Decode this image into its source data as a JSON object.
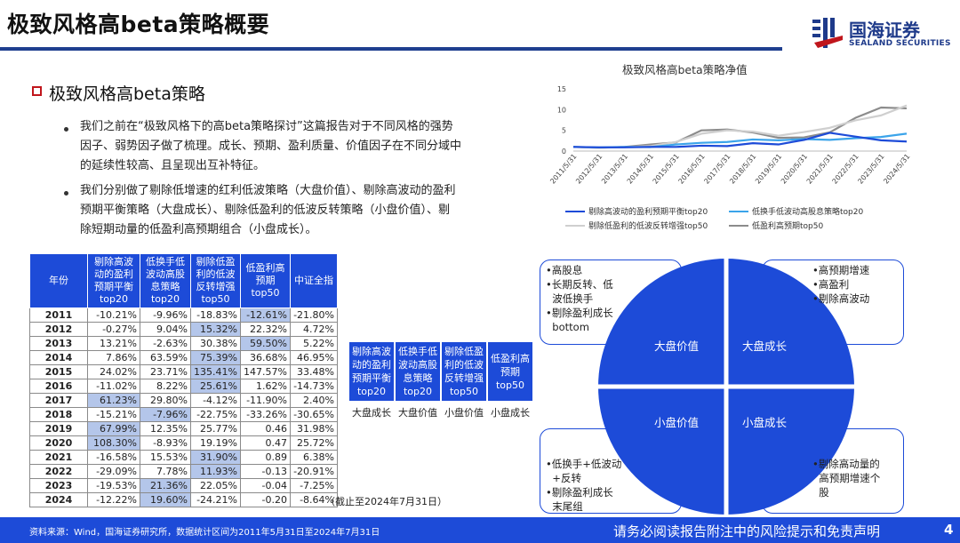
{
  "header": {
    "title": "极致风格高beta策略概要",
    "logo_name": "国海证券",
    "logo_sub": "SEALAND SECURITIES"
  },
  "section": {
    "title": "极致风格高beta策略",
    "bullets": [
      [
        "我们之前在“极致风格下的高beta策略探讨”这篇报告对于不同风格的强势",
        "因子、弱势因子做了梳理。成长、预期、盈利质量、价值因子在不同分域中",
        "的延续性较高、且呈现出互补特征。"
      ],
      [
        "我们分别做了剔除低增速的红利低波策略（大盘价值）、剔除高波动的盈利",
        "预期平衡策略（大盘成长）、剔除低盈利的低波反转策略（小盘价值）、剔",
        "除短期动量的低盈利高预期组合（小盘成长）。"
      ]
    ]
  },
  "returns_table": {
    "headers": [
      [
        "年份"
      ],
      [
        "剔除高波",
        "动的盈利",
        "预期平衡",
        "top20"
      ],
      [
        "低换手低",
        "波动高股",
        "息策略",
        "top20"
      ],
      [
        "剔除低盈",
        "利的低波",
        "反转增强",
        "top50"
      ],
      [
        "低盈利高",
        "预期",
        "top50"
      ],
      [
        "中证全指"
      ]
    ],
    "rows": [
      [
        "2011",
        "-10.21%",
        "-9.96%",
        "-18.83%",
        "-12.61%",
        "-21.80%"
      ],
      [
        "2012",
        "-0.27%",
        "9.04%",
        "15.32%",
        "22.32%",
        "4.72%"
      ],
      [
        "2013",
        "13.21%",
        "-2.63%",
        "30.38%",
        "59.50%",
        "5.22%"
      ],
      [
        "2014",
        "7.86%",
        "63.59%",
        "75.39%",
        "36.68%",
        "46.95%"
      ],
      [
        "2015",
        "24.02%",
        "23.71%",
        "135.41%",
        "147.57%",
        "33.48%"
      ],
      [
        "2016",
        "-11.02%",
        "8.22%",
        "25.61%",
        "1.62%",
        "-14.73%"
      ],
      [
        "2017",
        "61.23%",
        "29.80%",
        "-4.12%",
        "-11.90%",
        "2.40%"
      ],
      [
        "2018",
        "-15.21%",
        "-7.96%",
        "-22.75%",
        "-33.26%",
        "-30.65%"
      ],
      [
        "2019",
        "67.99%",
        "12.35%",
        "25.77%",
        "0.46",
        "31.98%"
      ],
      [
        "2020",
        "108.30%",
        "-8.93%",
        "19.19%",
        "0.47",
        "25.72%"
      ],
      [
        "2021",
        "-16.58%",
        "15.53%",
        "31.90%",
        "0.89",
        "6.38%"
      ],
      [
        "2022",
        "-29.09%",
        "7.78%",
        "11.93%",
        "-0.13",
        "-20.91%"
      ],
      [
        "2023",
        "-19.53%",
        "21.36%",
        "22.05%",
        "-0.04",
        "-7.25%"
      ],
      [
        "2024",
        "-12.22%",
        "19.60%",
        "-24.21%",
        "-0.20",
        "-8.64%"
      ]
    ],
    "highlighted": [
      [
        0,
        4
      ],
      [
        1,
        3
      ],
      [
        2,
        4
      ],
      [
        3,
        3
      ],
      [
        4,
        3
      ],
      [
        5,
        3
      ],
      [
        6,
        1
      ],
      [
        7,
        2
      ],
      [
        8,
        1
      ],
      [
        9,
        1
      ],
      [
        10,
        3
      ],
      [
        11,
        3
      ],
      [
        12,
        2
      ],
      [
        13,
        2
      ]
    ],
    "highlight_color": "#b4c6ea",
    "note": "（截止至2024年7月31日）"
  },
  "legend_table": {
    "headers": [
      [
        "剔除高波",
        "动的盈利",
        "预期平衡",
        "top20"
      ],
      [
        "低换手低",
        "波动高股",
        "息策略",
        "top20"
      ],
      [
        "剔除低盈",
        "利的低波",
        "反转增强",
        "top50"
      ],
      [
        "低盈利高",
        "预期",
        "top50"
      ]
    ],
    "styles": [
      "大盘成长",
      "大盘价值",
      "小盘价值",
      "小盘成长"
    ]
  },
  "chart_data": {
    "type": "line",
    "title": "极致风格高beta策略净值",
    "x_ticks": [
      "2011/5/31",
      "2012/5/31",
      "2013/5/31",
      "2014/5/31",
      "2015/5/31",
      "2016/5/31",
      "2017/5/31",
      "2018/5/31",
      "2019/5/31",
      "2020/5/31",
      "2021/5/31",
      "2022/5/31",
      "2023/5/31",
      "2024/5/31"
    ],
    "ylim": [
      0,
      15
    ],
    "y_ticks": [
      0,
      5,
      10,
      15
    ],
    "series": [
      {
        "name": "剔除高波动的盈利预期平衡top20",
        "color": "#1d4bd8",
        "values": [
          1.0,
          0.9,
          0.9,
          1.0,
          1.0,
          1.3,
          1.2,
          1.9,
          1.6,
          2.7,
          4.4,
          3.5,
          2.6,
          2.3
        ]
      },
      {
        "name": "低换手低波动高股息策略top20",
        "color": "#3ba4ea",
        "values": [
          1.0,
          0.9,
          1.0,
          0.97,
          1.6,
          2.0,
          2.2,
          2.8,
          2.6,
          2.9,
          2.7,
          3.1,
          3.4,
          4.2
        ]
      },
      {
        "name": "剔除低盈利的低波反转增强top50",
        "color": "#cfcfcf",
        "values": [
          1.0,
          0.8,
          0.95,
          1.2,
          2.2,
          4.2,
          5.0,
          4.7,
          3.7,
          4.6,
          5.6,
          7.4,
          8.6,
          11.0
        ]
      },
      {
        "name": "低盈利高预期top50",
        "color": "#8c8c8c",
        "values": [
          1.0,
          0.8,
          1.0,
          1.6,
          2.1,
          5.0,
          5.2,
          4.5,
          3.2,
          3.3,
          4.5,
          8.0,
          10.5,
          10.3
        ]
      }
    ]
  },
  "quadrant": {
    "labels": [
      "大盘价值",
      "大盘成长",
      "小盘价值",
      "小盘成长"
    ],
    "notes": {
      "top_left": [
        "•高股息",
        "•长期反转、低",
        "  波低换手",
        "•剔除盈利成长",
        "  bottom"
      ],
      "top_right": [
        "•高预期增速",
        "•高盈利",
        "•剔除高波动"
      ],
      "bottom_left": [
        "•低换手+低波动",
        "  +反转",
        "•剔除盈利成长",
        "  末尾组"
      ],
      "bottom_right": [
        "•剔除高动量的",
        "  高预期增速个",
        "  股"
      ]
    },
    "circle_color": "#1d4bd8"
  },
  "footer": {
    "source": "资料来源：Wind，国海证券研究所，数据统计区间为2011年5月31日至2024年7月31日",
    "disclaimer": "请务必阅读报告附注中的风险提示和免责声明",
    "page": "4"
  }
}
